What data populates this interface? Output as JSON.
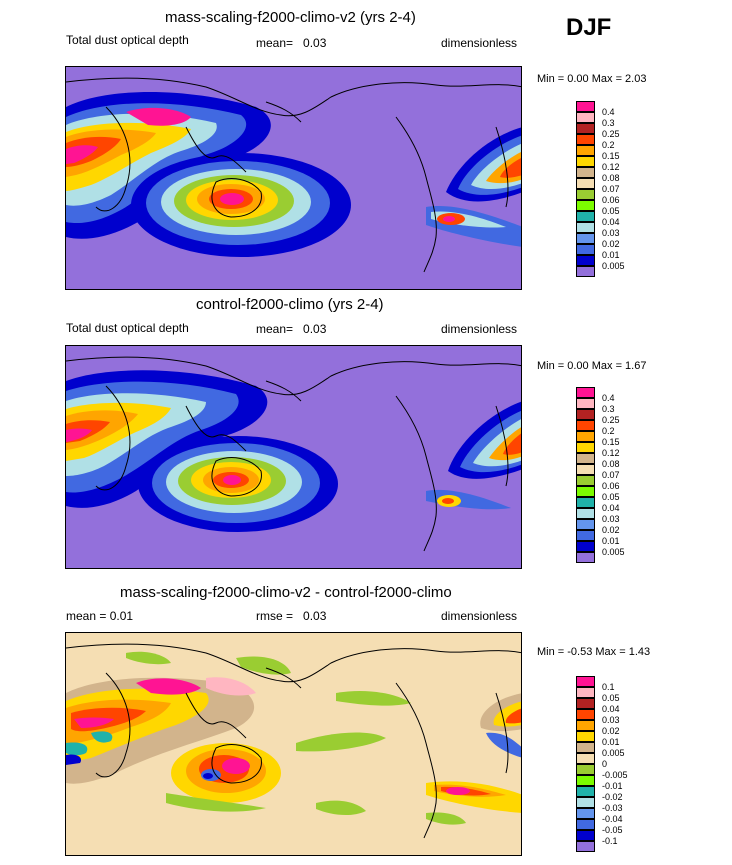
{
  "season": "DJF",
  "panels": [
    {
      "title": "mass-scaling-f2000-climo-v2 (yrs 2-4)",
      "left_label": "Total dust optical depth",
      "stat_label": "mean=",
      "stat_value": "0.03",
      "units": "dimensionless",
      "minmax": "Min =   0.00 Max =   2.03",
      "colorbar": {
        "labels": [
          "0.4",
          "0.3",
          "0.25",
          "0.2",
          "0.15",
          "0.12",
          "0.08",
          "0.07",
          "0.06",
          "0.05",
          "0.04",
          "0.03",
          "0.02",
          "0.01",
          "0.005"
        ],
        "colors": [
          "#ff1493",
          "#ffb6c1",
          "#b22222",
          "#ff4500",
          "#ffa500",
          "#ffd700",
          "#d2b48c",
          "#f5deb3",
          "#9acd32",
          "#7cfc00",
          "#20b2aa",
          "#b0e0e6",
          "#6495ed",
          "#4169e1",
          "#0000cd",
          "#9370db"
        ]
      }
    },
    {
      "title": "control-f2000-climo (yrs 2-4)",
      "left_label": "Total dust optical depth",
      "stat_label": "mean=",
      "stat_value": "0.03",
      "units": "dimensionless",
      "minmax": "Min =   0.00 Max =   1.67",
      "colorbar": {
        "labels": [
          "0.4",
          "0.3",
          "0.25",
          "0.2",
          "0.15",
          "0.12",
          "0.08",
          "0.07",
          "0.06",
          "0.05",
          "0.04",
          "0.03",
          "0.02",
          "0.01",
          "0.005"
        ],
        "colors": [
          "#ff1493",
          "#ffb6c1",
          "#b22222",
          "#ff4500",
          "#ffa500",
          "#ffd700",
          "#d2b48c",
          "#f5deb3",
          "#9acd32",
          "#7cfc00",
          "#20b2aa",
          "#b0e0e6",
          "#6495ed",
          "#4169e1",
          "#0000cd",
          "#9370db"
        ]
      }
    },
    {
      "title": "mass-scaling-f2000-climo-v2 - control-f2000-climo",
      "left_label": "mean =   0.01",
      "stat_label": "rmse =",
      "stat_value": "0.03",
      "units": "dimensionless",
      "minmax": "Min =  -0.53 Max =   1.43",
      "colorbar": {
        "labels": [
          "0.1",
          "0.05",
          "0.04",
          "0.03",
          "0.02",
          "0.01",
          "0.005",
          "0",
          "-0.005",
          "-0.01",
          "-0.02",
          "-0.03",
          "-0.04",
          "-0.05",
          "-0.1"
        ],
        "colors": [
          "#ff1493",
          "#ffb6c1",
          "#b22222",
          "#ff4500",
          "#ffa500",
          "#ffd700",
          "#d2b48c",
          "#f5deb3",
          "#9acd32",
          "#7cfc00",
          "#20b2aa",
          "#b0e0e6",
          "#6495ed",
          "#4169e1",
          "#0000cd",
          "#9370db"
        ]
      }
    }
  ]
}
